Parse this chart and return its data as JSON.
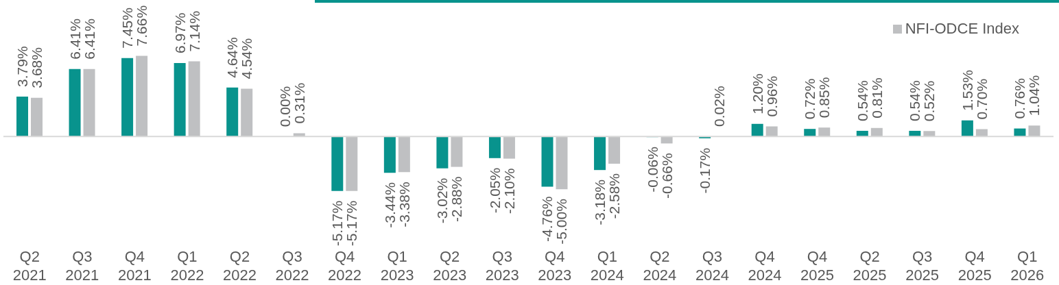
{
  "chart_data": {
    "type": "bar",
    "categories": [
      "Q2 2021",
      "Q3 2021",
      "Q4 2021",
      "Q1 2022",
      "Q2 2022",
      "Q3 2022",
      "Q4 2022",
      "Q1 2023",
      "Q2 2023",
      "Q3 2023",
      "Q4 2023",
      "Q1 2024",
      "Q2 2024",
      "Q3 2024",
      "Q4 2024",
      "Q4 2025",
      "Q2 2025",
      "Q3 2025",
      "Q4 2025",
      "Q1 2026"
    ],
    "series": [
      {
        "color": "#08938d",
        "values": [
          3.79,
          6.41,
          7.45,
          6.97,
          4.64,
          0.0,
          -5.17,
          -3.44,
          -3.02,
          -2.05,
          -4.76,
          -3.18,
          -0.06,
          -0.17,
          1.2,
          0.72,
          0.54,
          0.54,
          1.53,
          0.76
        ],
        "value_labels": [
          "3.79%",
          "6.41%",
          "7.45%",
          "6.97%",
          "4.64%",
          "0.00%",
          "-5.17%",
          "-3.44%",
          "-3.02%",
          "-2.05%",
          "-4.76%",
          "-3.18%",
          "-0.06%",
          "-0.17%",
          "1.20%",
          "0.72%",
          "0.54%",
          "0.54%",
          "1.53%",
          "0.76%"
        ]
      },
      {
        "name": "NFI-ODCE Index",
        "color": "#bfc0c2",
        "values": [
          3.68,
          6.41,
          7.66,
          7.14,
          4.54,
          0.31,
          -5.17,
          -3.38,
          -2.88,
          -2.1,
          -5.0,
          -2.58,
          -0.66,
          0.02,
          0.96,
          0.85,
          0.81,
          0.52,
          0.7,
          1.04
        ],
        "value_labels": [
          "3.68%",
          "6.41%",
          "7.66%",
          "7.14%",
          "4.54%",
          "0.31%",
          "-5.17%",
          "-3.38%",
          "-2.88%",
          "-2.10%",
          "-5.00%",
          "-2.58%",
          "-0.66%",
          "0.02%",
          "0.96%",
          "0.85%",
          "0.81%",
          "0.52%",
          "0.70%",
          "1.04%"
        ]
      }
    ],
    "legend": "top right"
  }
}
